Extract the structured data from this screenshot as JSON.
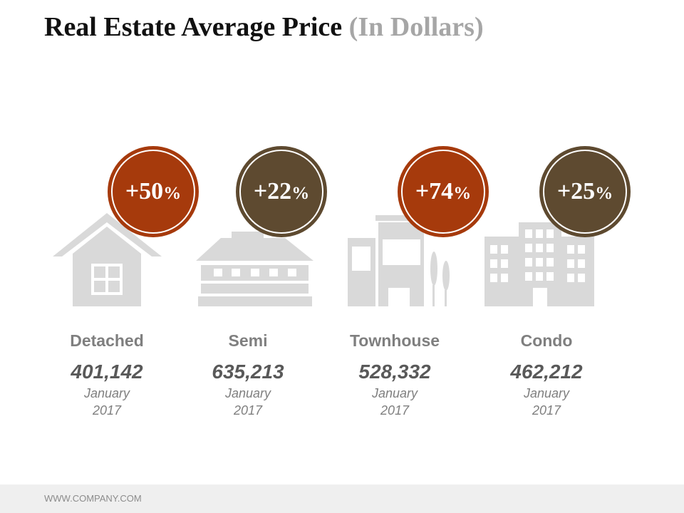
{
  "title": {
    "main": "Real Estate Average Price",
    "sub": "(In Dollars)"
  },
  "colors": {
    "rust": "#a63a0c",
    "brown": "#5e4a30",
    "icon_gray": "#d9d9d9",
    "title_gray": "#a6a6a6"
  },
  "categories": [
    {
      "label": "Detached",
      "value": "401,142",
      "month": "January",
      "year": "2017",
      "change": "+50",
      "pct": "%",
      "icon": "house-icon",
      "badge_color": "rust"
    },
    {
      "label": "Semi",
      "value": "635,213",
      "month": "January",
      "year": "2017",
      "change": "+22",
      "pct": "%",
      "icon": "semi-house-icon",
      "badge_color": "brown"
    },
    {
      "label": "Townhouse",
      "value": "528,332",
      "month": "January",
      "year": "2017",
      "change": "+74",
      "pct": "%",
      "icon": "townhouse-icon",
      "badge_color": "rust"
    },
    {
      "label": "Condo",
      "value": "462,212",
      "month": "January",
      "year": "2017",
      "change": "+25",
      "pct": "%",
      "icon": "condo-icon",
      "badge_color": "brown"
    }
  ],
  "footer": {
    "website": "WWW.COMPANY.COM"
  }
}
